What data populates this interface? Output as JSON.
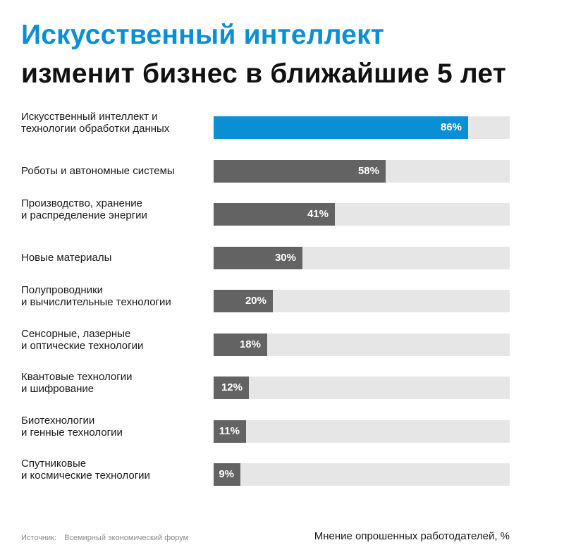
{
  "header": {
    "title_line1": "Искусственный интеллект",
    "title_line2": "изменит бизнес в ближайшие 5 лет"
  },
  "footer": {
    "source_label": "Источник:",
    "source_value": "Всемирный экономический форум",
    "unit_note": "Мнение опрошенных работодателей, %"
  },
  "colors": {
    "accent": "#0a8fd4",
    "bar": "#636363",
    "track": "#e6e6e6"
  },
  "chart_data": {
    "type": "bar",
    "orientation": "horizontal",
    "title": "Искусственный интеллект изменит бизнес в ближайшие 5 лет",
    "xlim": [
      0,
      100
    ],
    "grid": false,
    "categories": [
      [
        "Искусственный интеллект и",
        "технологии обработки данных"
      ],
      [
        "Роботы и автономные системы"
      ],
      [
        "Производство, хранение",
        "и распределение энергии"
      ],
      [
        "Новые материалы"
      ],
      [
        "Полупроводники",
        "и вычислительные технологии"
      ],
      [
        "Сенсорные, лазерные",
        "и оптические технологии"
      ],
      [
        "Квантовые технологии",
        "и шифрование"
      ],
      [
        "Биотехнологии",
        "и генные технологии"
      ],
      [
        "Спутниковые",
        "и космические технологии"
      ]
    ],
    "values": [
      86,
      58,
      41,
      30,
      20,
      18,
      12,
      11,
      9
    ],
    "value_labels": [
      "86%",
      "58%",
      "41%",
      "30%",
      "20%",
      "18%",
      "12%",
      "11%",
      "9%"
    ],
    "highlight_index": 0
  }
}
